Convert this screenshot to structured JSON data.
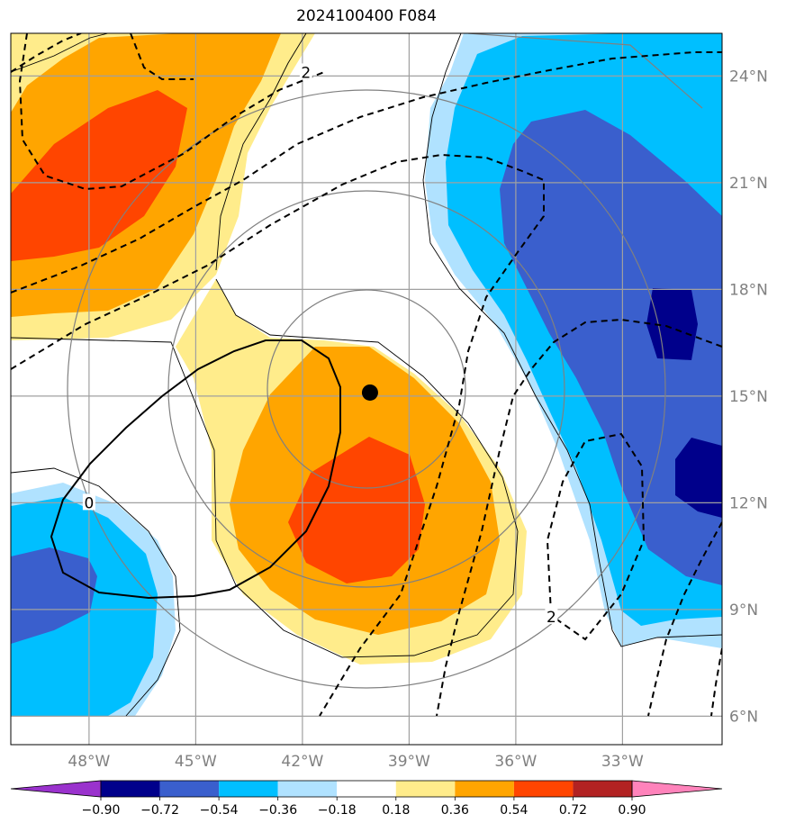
{
  "title": "2024100400 F084",
  "map": {
    "lon_range": [
      -50.2,
      -30.2
    ],
    "lat_range": [
      5.2,
      25.2
    ],
    "lon_ticks": [
      {
        "value": -48,
        "label": "48°W"
      },
      {
        "value": -45,
        "label": "45°W"
      },
      {
        "value": -42,
        "label": "42°W"
      },
      {
        "value": -39,
        "label": "39°W"
      },
      {
        "value": -36,
        "label": "36°W"
      },
      {
        "value": -33,
        "label": "33°W"
      }
    ],
    "lat_ticks": [
      {
        "value": 24,
        "label": "24°N"
      },
      {
        "value": 21,
        "label": "21°N"
      },
      {
        "value": 18,
        "label": "18°N"
      },
      {
        "value": 15,
        "label": "15°N"
      },
      {
        "value": 12,
        "label": "12°N"
      },
      {
        "value": 9,
        "label": "9°N"
      },
      {
        "value": 6,
        "label": "6°N"
      }
    ],
    "grid": true,
    "storm_center": {
      "lon": -40.1,
      "lat": 15.1
    },
    "contour_labels": [
      {
        "text": "2",
        "lon": -41.9,
        "lat": 24.1
      },
      {
        "text": "0",
        "lon": -48.0,
        "lat": 12.0
      },
      {
        "text": "2",
        "lon": -35.0,
        "lat": 8.8
      }
    ]
  },
  "colorbar": {
    "levels": [
      "−0.90",
      "−0.72",
      "−0.54",
      "−0.36",
      "−0.18",
      "0.18",
      "0.36",
      "0.54",
      "0.72",
      "0.90"
    ],
    "colors": [
      "#9a32cd",
      "#00008b",
      "#3a5fcd",
      "#00bfff",
      "#b0e2ff",
      "#ffffff",
      "#ffec8b",
      "#ffa500",
      "#ff4500",
      "#b22222",
      "#ff83bb"
    ]
  },
  "fill_colors": {
    "neg1": "#b0e2ff",
    "neg2": "#00bfff",
    "neg3": "#3a5fcd",
    "neg4": "#00008b",
    "pos1": "#ffec8b",
    "pos2": "#ffa500",
    "pos3": "#ff4500"
  }
}
